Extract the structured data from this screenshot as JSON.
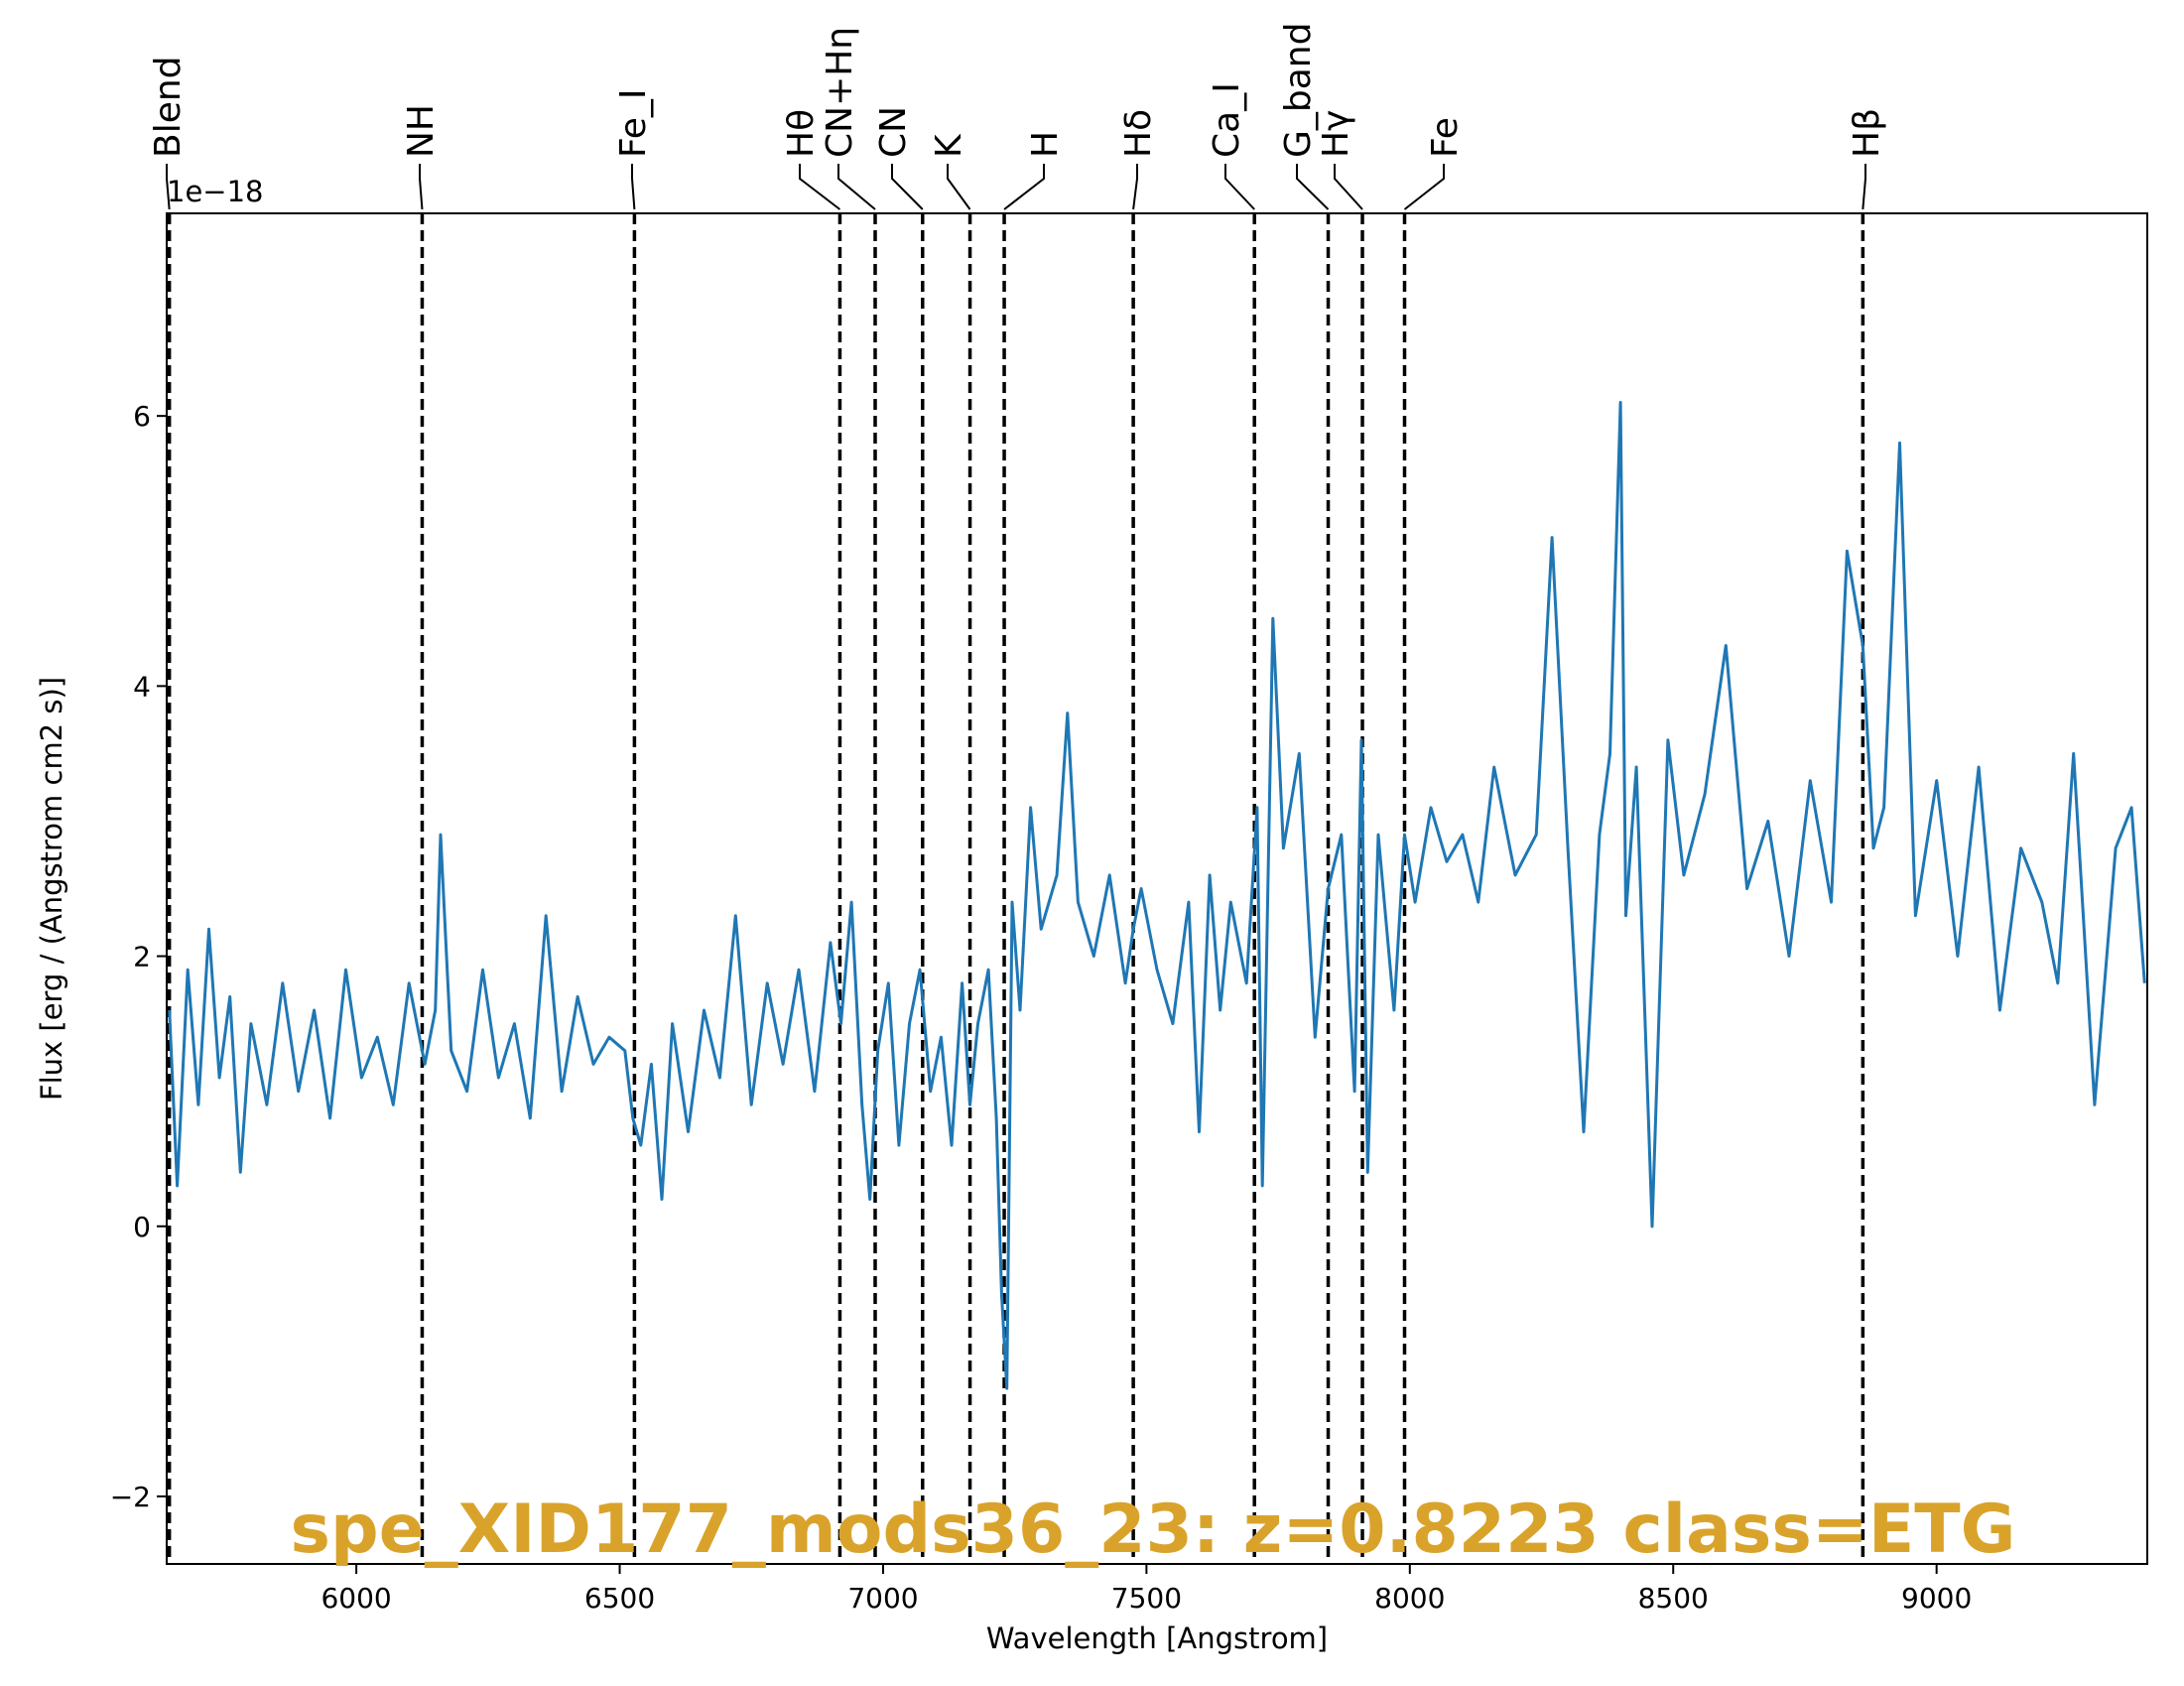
{
  "chart_data": {
    "type": "line",
    "xlabel": "Wavelength [Angstrom]",
    "ylabel": "Flux [erg / (Angstrom cm2 s)]",
    "offset_text": "1e−18",
    "xlim": [
      5640,
      9400
    ],
    "ylim": [
      -2.5,
      7.5
    ],
    "x_ticks": [
      6000,
      6500,
      7000,
      7500,
      8000,
      8500,
      9000
    ],
    "y_ticks": [
      -2,
      0,
      2,
      4,
      6
    ],
    "x_tick_labels": [
      "6000",
      "6500",
      "7000",
      "7500",
      "8000",
      "8500",
      "9000"
    ],
    "y_tick_labels": [
      "−2",
      "0",
      "2",
      "4",
      "6"
    ],
    "grid": false,
    "series": [
      {
        "color": "#1f77b4",
        "x": [
          5645,
          5660,
          5680,
          5700,
          5720,
          5740,
          5760,
          5780,
          5800,
          5830,
          5860,
          5890,
          5920,
          5950,
          5980,
          6010,
          6040,
          6070,
          6100,
          6130,
          6150,
          6160,
          6180,
          6210,
          6240,
          6270,
          6300,
          6330,
          6360,
          6390,
          6420,
          6450,
          6480,
          6510,
          6525,
          6540,
          6560,
          6580,
          6600,
          6630,
          6660,
          6690,
          6720,
          6750,
          6780,
          6810,
          6840,
          6870,
          6900,
          6920,
          6940,
          6960,
          6975,
          6990,
          7010,
          7030,
          7050,
          7070,
          7090,
          7110,
          7130,
          7150,
          7165,
          7180,
          7200,
          7215,
          7225,
          7235,
          7245,
          7260,
          7280,
          7300,
          7330,
          7350,
          7370,
          7400,
          7430,
          7460,
          7475,
          7490,
          7520,
          7550,
          7580,
          7600,
          7620,
          7640,
          7660,
          7690,
          7710,
          7720,
          7740,
          7760,
          7790,
          7820,
          7845,
          7870,
          7895,
          7908,
          7920,
          7940,
          7970,
          7990,
          8010,
          8040,
          8070,
          8100,
          8130,
          8160,
          8200,
          8240,
          8270,
          8300,
          8330,
          8360,
          8380,
          8400,
          8410,
          8430,
          8460,
          8490,
          8520,
          8560,
          8600,
          8640,
          8680,
          8720,
          8760,
          8800,
          8830,
          8860,
          8880,
          8900,
          8930,
          8960,
          9000,
          9040,
          9080,
          9120,
          9160,
          9200,
          9230,
          9260,
          9300,
          9340,
          9370,
          9395
        ],
        "y": [
          1.6,
          0.3,
          1.9,
          0.9,
          2.2,
          1.1,
          1.7,
          0.4,
          1.5,
          0.9,
          1.8,
          1.0,
          1.6,
          0.8,
          1.9,
          1.1,
          1.4,
          0.9,
          1.8,
          1.2,
          1.6,
          2.9,
          1.3,
          1.0,
          1.9,
          1.1,
          1.5,
          0.8,
          2.3,
          1.0,
          1.7,
          1.2,
          1.4,
          1.3,
          0.8,
          0.6,
          1.2,
          0.2,
          1.5,
          0.7,
          1.6,
          1.1,
          2.3,
          0.9,
          1.8,
          1.2,
          1.9,
          1.0,
          2.1,
          1.5,
          2.4,
          0.9,
          0.2,
          1.3,
          1.8,
          0.6,
          1.5,
          1.9,
          1.0,
          1.4,
          0.6,
          1.8,
          0.9,
          1.5,
          1.9,
          0.8,
          -0.5,
          -1.2,
          2.4,
          1.6,
          3.1,
          2.2,
          2.6,
          3.8,
          2.4,
          2.0,
          2.6,
          1.8,
          2.2,
          2.5,
          1.9,
          1.5,
          2.4,
          0.7,
          2.6,
          1.6,
          2.4,
          1.8,
          3.1,
          0.3,
          4.5,
          2.8,
          3.5,
          1.4,
          2.5,
          2.9,
          1.0,
          3.6,
          0.4,
          2.9,
          1.6,
          2.9,
          2.4,
          3.1,
          2.7,
          2.9,
          2.4,
          3.4,
          2.6,
          2.9,
          5.1,
          2.8,
          0.7,
          2.9,
          3.5,
          6.1,
          2.3,
          3.4,
          0.0,
          3.6,
          2.6,
          3.2,
          4.3,
          2.5,
          3.0,
          2.0,
          3.3,
          2.4,
          5.0,
          4.3,
          2.8,
          3.1,
          5.8,
          2.3,
          3.3,
          2.0,
          3.4,
          1.6,
          2.8,
          2.4,
          1.8,
          3.5,
          0.9,
          2.8,
          3.1,
          1.8
        ]
      }
    ],
    "lines": [
      {
        "x": 5645,
        "label": "Blend"
      },
      {
        "x": 6125,
        "label": "NH"
      },
      {
        "x": 6528,
        "label": "Fe_I"
      },
      {
        "x": 6918,
        "label": "Hθ"
      },
      {
        "x": 6985,
        "label": "CN+Hη"
      },
      {
        "x": 7075,
        "label": "CN"
      },
      {
        "x": 7165,
        "label": "K"
      },
      {
        "x": 7230,
        "label": "H"
      },
      {
        "x": 7475,
        "label": "Hδ"
      },
      {
        "x": 7705,
        "label": "Ca_I"
      },
      {
        "x": 7845,
        "label": "G_band"
      },
      {
        "x": 7910,
        "label": "Hγ"
      },
      {
        "x": 7990,
        "label": "Fe"
      },
      {
        "x": 8860,
        "label": "Hβ"
      }
    ],
    "annotation": "spe_XID177_mods36_23: z=0.8223 class=ETG",
    "annotation_color": "#d9a32b"
  }
}
